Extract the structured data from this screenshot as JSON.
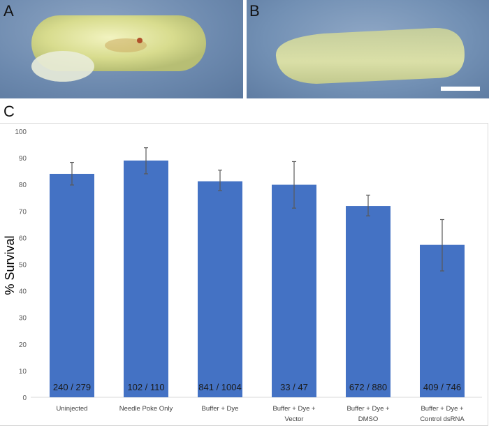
{
  "panels": {
    "a_label": "A",
    "b_label": "B",
    "c_label": "C"
  },
  "chart_data": {
    "type": "bar",
    "title": "",
    "xlabel": "",
    "ylabel": "% Survival",
    "ylim": [
      0,
      100
    ],
    "yticks": [
      0,
      10,
      20,
      30,
      40,
      50,
      60,
      70,
      80,
      90,
      100
    ],
    "grid": false,
    "categories": [
      [
        "Uninjected"
      ],
      [
        "Needle Poke Only"
      ],
      [
        "Buffer + Dye"
      ],
      [
        "Buffer + Dye +",
        "Vector"
      ],
      [
        "Buffer + Dye +",
        "DMSO"
      ],
      [
        "Buffer + Dye +",
        "Control dsRNA"
      ]
    ],
    "values": [
      84.0,
      89.0,
      81.2,
      79.9,
      71.9,
      57.3
    ],
    "error_upper": [
      88.3,
      93.8,
      85.4,
      88.6,
      76.0,
      66.8
    ],
    "error_lower": [
      79.8,
      84.0,
      77.7,
      71.1,
      68.2,
      47.5
    ],
    "bar_labels": [
      "240 / 279",
      "102 / 110",
      "841 / 1004",
      "33 / 47",
      "672 / 880",
      "409 / 746"
    ],
    "bar_color": "#4472c4",
    "error_color": "#595959"
  }
}
